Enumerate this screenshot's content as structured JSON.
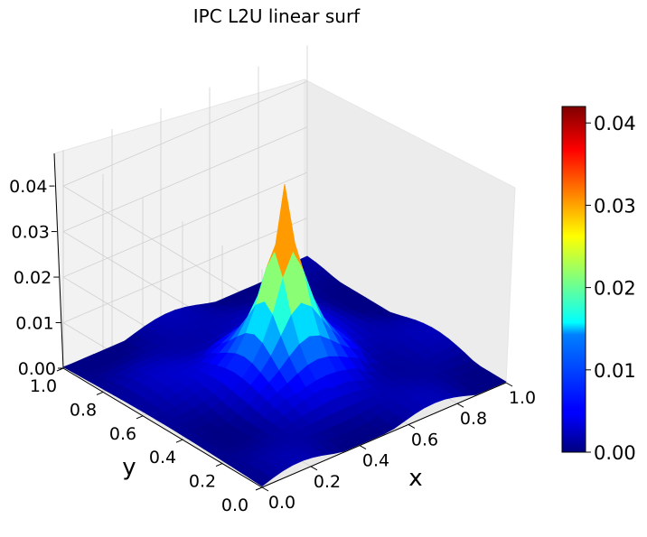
{
  "chart_data": {
    "type": "surface3d",
    "title": "IPC L2U linear surf",
    "xlabel": "x",
    "ylabel": "y",
    "zlabel": "",
    "xlim": [
      0.0,
      1.0
    ],
    "ylim": [
      0.0,
      1.0
    ],
    "zlim": [
      0.0,
      0.042
    ],
    "x_ticks": [
      "0.0",
      "0.2",
      "0.4",
      "0.6",
      "0.8",
      "1.0"
    ],
    "y_ticks": [
      "0.0",
      "0.2",
      "0.4",
      "0.6",
      "0.8",
      "1.0"
    ],
    "z_ticks": [
      "0.00",
      "0.01",
      "0.02",
      "0.03",
      "0.04"
    ],
    "colorbar": {
      "colormap": "jet",
      "range": [
        0.0,
        0.042
      ],
      "ticks": [
        "0.00",
        "0.01",
        "0.02",
        "0.03",
        "0.04"
      ]
    },
    "surface": {
      "peak_location": [
        0.5,
        0.5
      ],
      "peak_value": 0.042,
      "grid_resolution": 24,
      "shape": "sharp central peak decaying toward a near-zero plateau at the boundary"
    },
    "grid": true
  }
}
